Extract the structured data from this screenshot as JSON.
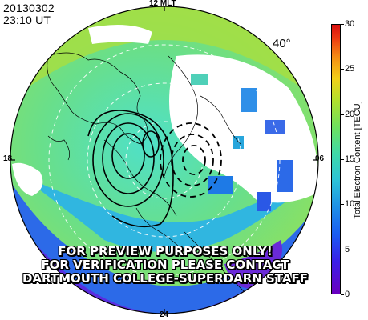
{
  "header": {
    "date": "20130302",
    "time": "23:10 UT",
    "latitude": "40°"
  },
  "mlt_labels": {
    "top": "12 MLT",
    "left": "18",
    "right": "06",
    "bottom": "24"
  },
  "watermark": {
    "line1": "FOR PREVIEW PURPOSES ONLY!",
    "line2": "FOR VERIFICATION PLEASE CONTACT",
    "line3": "DARTMOUTH COLLEGE-SUPERDARN STAFF"
  },
  "colorbar": {
    "title": "Total Electron Content [TECU]",
    "ticks": [
      "0",
      "5",
      "10",
      "15",
      "20",
      "25",
      "30"
    ],
    "range": [
      0,
      30
    ],
    "colors": [
      "#6a00c0",
      "#1a5cf2",
      "#2cc2d8",
      "#6fe05e",
      "#f2d018",
      "#ec3a12",
      "#d81010"
    ]
  }
}
